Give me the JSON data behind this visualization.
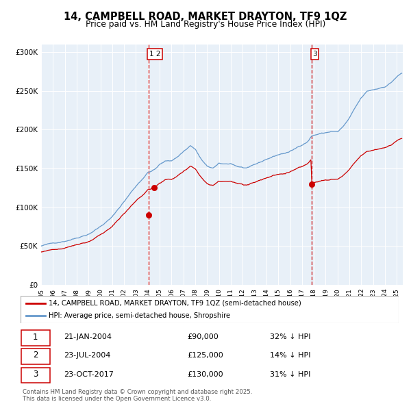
{
  "title": "14, CAMPBELL ROAD, MARKET DRAYTON, TF9 1QZ",
  "subtitle": "Price paid vs. HM Land Registry's House Price Index (HPI)",
  "legend_line1": "14, CAMPBELL ROAD, MARKET DRAYTON, TF9 1QZ (semi-detached house)",
  "legend_line2": "HPI: Average price, semi-detached house, Shropshire",
  "transactions": [
    {
      "label": "1",
      "date_label": "21-JAN-2004",
      "price": 90000,
      "hpi_pct": "32% ↓ HPI",
      "date_x": 2004.05
    },
    {
      "label": "2",
      "date_label": "23-JUL-2004",
      "price": 125000,
      "hpi_pct": "14% ↓ HPI",
      "date_x": 2004.55
    },
    {
      "label": "3",
      "date_label": "23-OCT-2017",
      "price": 130000,
      "hpi_pct": "31% ↓ HPI",
      "date_x": 2017.81
    }
  ],
  "hpi_color": "#6699cc",
  "price_color": "#cc0000",
  "vline_color": "#cc0000",
  "background_chart": "#e8f0f8",
  "ylim": [
    0,
    310000
  ],
  "xlim_start": 1995,
  "xlim_end": 2025.5,
  "footnote": "Contains HM Land Registry data © Crown copyright and database right 2025.\nThis data is licensed under the Open Government Licence v3.0.",
  "hpi_waypoints_x": [
    1995.0,
    1996.0,
    1997.0,
    1998.0,
    1999.0,
    2000.0,
    2001.0,
    2002.0,
    2003.0,
    2004.0,
    2004.6,
    2005.0,
    2005.5,
    2006.0,
    2006.5,
    2007.0,
    2007.6,
    2008.0,
    2008.5,
    2009.0,
    2009.5,
    2010.0,
    2010.5,
    2011.0,
    2011.5,
    2012.0,
    2012.5,
    2013.0,
    2013.5,
    2014.0,
    2014.5,
    2015.0,
    2015.5,
    2016.0,
    2016.5,
    2017.0,
    2017.5,
    2017.81,
    2018.0,
    2018.5,
    2019.0,
    2019.5,
    2020.0,
    2020.5,
    2021.0,
    2021.5,
    2022.0,
    2022.5,
    2023.0,
    2023.5,
    2024.0,
    2024.5,
    2025.0,
    2025.4
  ],
  "hpi_waypoints_y": [
    50000,
    53000,
    57000,
    62000,
    68000,
    78000,
    90000,
    110000,
    130000,
    148000,
    152000,
    158000,
    162000,
    163000,
    168000,
    175000,
    183000,
    178000,
    165000,
    155000,
    153000,
    158000,
    157000,
    158000,
    155000,
    153000,
    152000,
    155000,
    158000,
    162000,
    165000,
    168000,
    170000,
    172000,
    176000,
    181000,
    186000,
    193000,
    194000,
    196000,
    197000,
    199000,
    198000,
    205000,
    215000,
    228000,
    240000,
    248000,
    250000,
    252000,
    255000,
    260000,
    268000,
    272000
  ]
}
